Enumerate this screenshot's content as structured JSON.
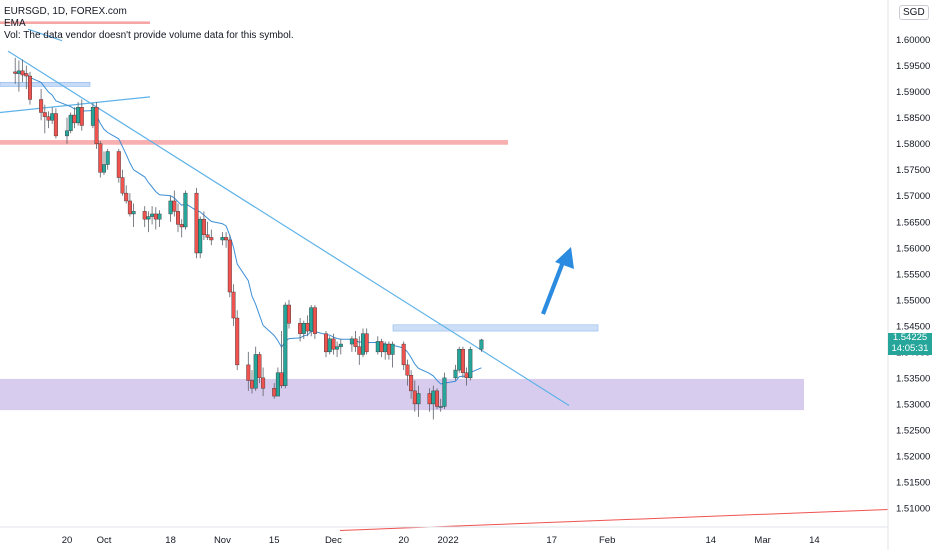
{
  "legend": {
    "symbol_line": "EURSGD, 1D, FOREX.com",
    "indicator": "EMA",
    "volume_note": "Vol: The data vendor doesn't provide volume data for this symbol."
  },
  "currency": "SGD",
  "price_badge": {
    "price": "1.54225",
    "countdown": "14:05:31"
  },
  "colors": {
    "up": "#26a69a",
    "down": "#ef5350",
    "trendline": "#5fb3e8",
    "ema": "#3c8fd6",
    "resistance_zone": "#f7a6a6",
    "supply_zone": "#bfd7f5",
    "support_zone": "#d3c6ec",
    "arrow": "#2a8be0",
    "long_trendline": "#ef5350"
  },
  "chart_data": {
    "type": "candlestick",
    "y_axis": {
      "min": 1.505,
      "max": 1.6055,
      "ticks": [
        "1.60000",
        "1.59500",
        "1.59000",
        "1.58500",
        "1.58000",
        "1.57500",
        "1.57000",
        "1.56500",
        "1.56000",
        "1.55500",
        "1.55000",
        "1.54500",
        "1.54000",
        "1.53500",
        "1.53000",
        "1.52500",
        "1.52000",
        "1.51500",
        "1.51000"
      ]
    },
    "x_axis": {
      "labels": [
        {
          "text": "20",
          "day": 0
        },
        {
          "text": "Oct",
          "day": 10
        },
        {
          "text": "18",
          "day": 28
        },
        {
          "text": "Nov",
          "day": 42
        },
        {
          "text": "15",
          "day": 56
        },
        {
          "text": "Dec",
          "day": 72
        },
        {
          "text": "20",
          "day": 91
        },
        {
          "text": "2022",
          "day": 103
        },
        {
          "text": "17",
          "day": 131
        },
        {
          "text": "Feb",
          "day": 146
        },
        {
          "text": "14",
          "day": 174
        },
        {
          "text": "Mar",
          "day": 188
        },
        {
          "text": "14",
          "day": 202
        }
      ]
    },
    "candles": [
      {
        "day": -14,
        "o": 1.5938,
        "h": 1.5965,
        "l": 1.5915,
        "c": 1.5935
      },
      {
        "day": -13,
        "o": 1.5935,
        "h": 1.596,
        "l": 1.59,
        "c": 1.594
      },
      {
        "day": -12,
        "o": 1.594,
        "h": 1.5962,
        "l": 1.5918,
        "c": 1.5932
      },
      {
        "day": -11,
        "o": 1.5935,
        "h": 1.595,
        "l": 1.5905,
        "c": 1.593
      },
      {
        "day": -10,
        "o": 1.593,
        "h": 1.5938,
        "l": 1.5875,
        "c": 1.5885
      },
      {
        "day": -7,
        "o": 1.5885,
        "h": 1.5905,
        "l": 1.5845,
        "c": 1.586
      },
      {
        "day": -6,
        "o": 1.586,
        "h": 1.5875,
        "l": 1.582,
        "c": 1.5852
      },
      {
        "day": -5,
        "o": 1.5852,
        "h": 1.5862,
        "l": 1.583,
        "c": 1.5845
      },
      {
        "day": -4,
        "o": 1.5845,
        "h": 1.587,
        "l": 1.5838,
        "c": 1.5858
      },
      {
        "day": -3,
        "o": 1.5858,
        "h": 1.5868,
        "l": 1.581,
        "c": 1.5815
      },
      {
        "day": 0,
        "o": 1.5815,
        "h": 1.585,
        "l": 1.58,
        "c": 1.5825
      },
      {
        "day": 1,
        "o": 1.5825,
        "h": 1.586,
        "l": 1.582,
        "c": 1.5855
      },
      {
        "day": 2,
        "o": 1.5855,
        "h": 1.587,
        "l": 1.583,
        "c": 1.584
      },
      {
        "day": 3,
        "o": 1.584,
        "h": 1.588,
        "l": 1.5835,
        "c": 1.587
      },
      {
        "day": 4,
        "o": 1.587,
        "h": 1.5885,
        "l": 1.5825,
        "c": 1.5835
      },
      {
        "day": 7,
        "o": 1.5835,
        "h": 1.5878,
        "l": 1.583,
        "c": 1.587
      },
      {
        "day": 8,
        "o": 1.587,
        "h": 1.588,
        "l": 1.579,
        "c": 1.58
      },
      {
        "day": 9,
        "o": 1.58,
        "h": 1.5805,
        "l": 1.5735,
        "c": 1.5745
      },
      {
        "day": 10,
        "o": 1.5745,
        "h": 1.5785,
        "l": 1.574,
        "c": 1.576
      },
      {
        "day": 11,
        "o": 1.576,
        "h": 1.579,
        "l": 1.575,
        "c": 1.5785
      },
      {
        "day": 14,
        "o": 1.5785,
        "h": 1.579,
        "l": 1.5725,
        "c": 1.5735
      },
      {
        "day": 15,
        "o": 1.5735,
        "h": 1.575,
        "l": 1.57,
        "c": 1.5705
      },
      {
        "day": 16,
        "o": 1.5705,
        "h": 1.572,
        "l": 1.5685,
        "c": 1.569
      },
      {
        "day": 17,
        "o": 1.569,
        "h": 1.5705,
        "l": 1.566,
        "c": 1.5665
      },
      {
        "day": 18,
        "o": 1.5665,
        "h": 1.5685,
        "l": 1.564,
        "c": 1.567
      },
      {
        "day": 21,
        "o": 1.567,
        "h": 1.568,
        "l": 1.564,
        "c": 1.5655
      },
      {
        "day": 22,
        "o": 1.5655,
        "h": 1.567,
        "l": 1.563,
        "c": 1.566
      },
      {
        "day": 23,
        "o": 1.566,
        "h": 1.568,
        "l": 1.5645,
        "c": 1.5665
      },
      {
        "day": 24,
        "o": 1.5665,
        "h": 1.5678,
        "l": 1.5635,
        "c": 1.5655
      },
      {
        "day": 25,
        "o": 1.5655,
        "h": 1.5672,
        "l": 1.564,
        "c": 1.5665
      },
      {
        "day": 28,
        "o": 1.5665,
        "h": 1.57,
        "l": 1.565,
        "c": 1.569
      },
      {
        "day": 29,
        "o": 1.569,
        "h": 1.571,
        "l": 1.566,
        "c": 1.567
      },
      {
        "day": 30,
        "o": 1.567,
        "h": 1.5685,
        "l": 1.563,
        "c": 1.5645
      },
      {
        "day": 31,
        "o": 1.5645,
        "h": 1.5655,
        "l": 1.562,
        "c": 1.564
      },
      {
        "day": 32,
        "o": 1.564,
        "h": 1.571,
        "l": 1.5635,
        "c": 1.5705
      },
      {
        "day": 35,
        "o": 1.5705,
        "h": 1.5715,
        "l": 1.558,
        "c": 1.559
      },
      {
        "day": 36,
        "o": 1.559,
        "h": 1.566,
        "l": 1.558,
        "c": 1.5655
      },
      {
        "day": 37,
        "o": 1.5655,
        "h": 1.567,
        "l": 1.5615,
        "c": 1.5625
      },
      {
        "day": 38,
        "o": 1.5625,
        "h": 1.565,
        "l": 1.5615,
        "c": 1.562
      },
      {
        "day": 39,
        "o": 1.562,
        "h": 1.5635,
        "l": 1.5605,
        "c": 1.5615
      },
      {
        "day": 42,
        "o": 1.5615,
        "h": 1.563,
        "l": 1.5605,
        "c": 1.562
      },
      {
        "day": 43,
        "o": 1.562,
        "h": 1.563,
        "l": 1.56,
        "c": 1.5615
      },
      {
        "day": 44,
        "o": 1.5615,
        "h": 1.5625,
        "l": 1.5505,
        "c": 1.5515
      },
      {
        "day": 45,
        "o": 1.5515,
        "h": 1.553,
        "l": 1.545,
        "c": 1.5465
      },
      {
        "day": 46,
        "o": 1.5465,
        "h": 1.548,
        "l": 1.5365,
        "c": 1.5375
      },
      {
        "day": 49,
        "o": 1.5375,
        "h": 1.54,
        "l": 1.5325,
        "c": 1.5345
      },
      {
        "day": 50,
        "o": 1.5345,
        "h": 1.5365,
        "l": 1.532,
        "c": 1.533
      },
      {
        "day": 51,
        "o": 1.533,
        "h": 1.541,
        "l": 1.5325,
        "c": 1.5395
      },
      {
        "day": 52,
        "o": 1.5395,
        "h": 1.54,
        "l": 1.534,
        "c": 1.535
      },
      {
        "day": 53,
        "o": 1.535,
        "h": 1.537,
        "l": 1.5315,
        "c": 1.533
      },
      {
        "day": 56,
        "o": 1.533,
        "h": 1.534,
        "l": 1.531,
        "c": 1.5315
      },
      {
        "day": 57,
        "o": 1.5315,
        "h": 1.537,
        "l": 1.5315,
        "c": 1.536
      },
      {
        "day": 58,
        "o": 1.536,
        "h": 1.544,
        "l": 1.533,
        "c": 1.5335
      },
      {
        "day": 59,
        "o": 1.5335,
        "h": 1.5495,
        "l": 1.533,
        "c": 1.549
      },
      {
        "day": 60,
        "o": 1.549,
        "h": 1.55,
        "l": 1.5445,
        "c": 1.5455
      },
      {
        "day": 63,
        "o": 1.5455,
        "h": 1.5465,
        "l": 1.542,
        "c": 1.5435
      },
      {
        "day": 64,
        "o": 1.5435,
        "h": 1.546,
        "l": 1.5425,
        "c": 1.5455
      },
      {
        "day": 65,
        "o": 1.5455,
        "h": 1.547,
        "l": 1.543,
        "c": 1.544
      },
      {
        "day": 66,
        "o": 1.544,
        "h": 1.549,
        "l": 1.543,
        "c": 1.5485
      },
      {
        "day": 67,
        "o": 1.5485,
        "h": 1.549,
        "l": 1.5425,
        "c": 1.5435
      },
      {
        "day": 70,
        "o": 1.5435,
        "h": 1.544,
        "l": 1.539,
        "c": 1.54
      },
      {
        "day": 71,
        "o": 1.54,
        "h": 1.543,
        "l": 1.5395,
        "c": 1.5425
      },
      {
        "day": 72,
        "o": 1.5425,
        "h": 1.5435,
        "l": 1.5395,
        "c": 1.5405
      },
      {
        "day": 73,
        "o": 1.5405,
        "h": 1.542,
        "l": 1.539,
        "c": 1.541
      },
      {
        "day": 74,
        "o": 1.541,
        "h": 1.5425,
        "l": 1.5395,
        "c": 1.5415
      },
      {
        "day": 77,
        "o": 1.5415,
        "h": 1.543,
        "l": 1.54,
        "c": 1.5425
      },
      {
        "day": 78,
        "o": 1.5425,
        "h": 1.544,
        "l": 1.54,
        "c": 1.541
      },
      {
        "day": 79,
        "o": 1.541,
        "h": 1.543,
        "l": 1.5375,
        "c": 1.5395
      },
      {
        "day": 80,
        "o": 1.5395,
        "h": 1.5445,
        "l": 1.539,
        "c": 1.5435
      },
      {
        "day": 81,
        "o": 1.5435,
        "h": 1.5445,
        "l": 1.5395,
        "c": 1.54
      },
      {
        "day": 84,
        "o": 1.54,
        "h": 1.543,
        "l": 1.5395,
        "c": 1.542
      },
      {
        "day": 85,
        "o": 1.542,
        "h": 1.5425,
        "l": 1.539,
        "c": 1.54
      },
      {
        "day": 86,
        "o": 1.54,
        "h": 1.542,
        "l": 1.5385,
        "c": 1.5415
      },
      {
        "day": 87,
        "o": 1.5415,
        "h": 1.542,
        "l": 1.5385,
        "c": 1.5395
      },
      {
        "day": 88,
        "o": 1.5395,
        "h": 1.542,
        "l": 1.537,
        "c": 1.5415
      },
      {
        "day": 91,
        "o": 1.5415,
        "h": 1.542,
        "l": 1.5365,
        "c": 1.5375
      },
      {
        "day": 92,
        "o": 1.5375,
        "h": 1.5385,
        "l": 1.5335,
        "c": 1.5355
      },
      {
        "day": 93,
        "o": 1.5355,
        "h": 1.5365,
        "l": 1.531,
        "c": 1.5325
      },
      {
        "day": 94,
        "o": 1.5325,
        "h": 1.5345,
        "l": 1.5285,
        "c": 1.53
      },
      {
        "day": 95,
        "o": 1.53,
        "h": 1.5335,
        "l": 1.5275,
        "c": 1.532
      },
      {
        "day": 98,
        "o": 1.532,
        "h": 1.533,
        "l": 1.5285,
        "c": 1.53
      },
      {
        "day": 99,
        "o": 1.53,
        "h": 1.5335,
        "l": 1.527,
        "c": 1.5325
      },
      {
        "day": 100,
        "o": 1.5325,
        "h": 1.533,
        "l": 1.529,
        "c": 1.5295
      },
      {
        "day": 101,
        "o": 1.5295,
        "h": 1.531,
        "l": 1.5285,
        "c": 1.5295
      },
      {
        "day": 102,
        "o": 1.5295,
        "h": 1.536,
        "l": 1.529,
        "c": 1.535
      },
      {
        "day": 105,
        "o": 1.535,
        "h": 1.5375,
        "l": 1.5345,
        "c": 1.5365
      },
      {
        "day": 106,
        "o": 1.5365,
        "h": 1.541,
        "l": 1.536,
        "c": 1.5405
      },
      {
        "day": 107,
        "o": 1.5405,
        "h": 1.541,
        "l": 1.535,
        "c": 1.536
      },
      {
        "day": 108,
        "o": 1.536,
        "h": 1.537,
        "l": 1.5335,
        "c": 1.535
      },
      {
        "day": 109,
        "o": 1.535,
        "h": 1.541,
        "l": 1.5345,
        "c": 1.5405
      },
      {
        "day": 112,
        "o": 1.5405,
        "h": 1.5425,
        "l": 1.54,
        "c": 1.5423
      }
    ]
  }
}
